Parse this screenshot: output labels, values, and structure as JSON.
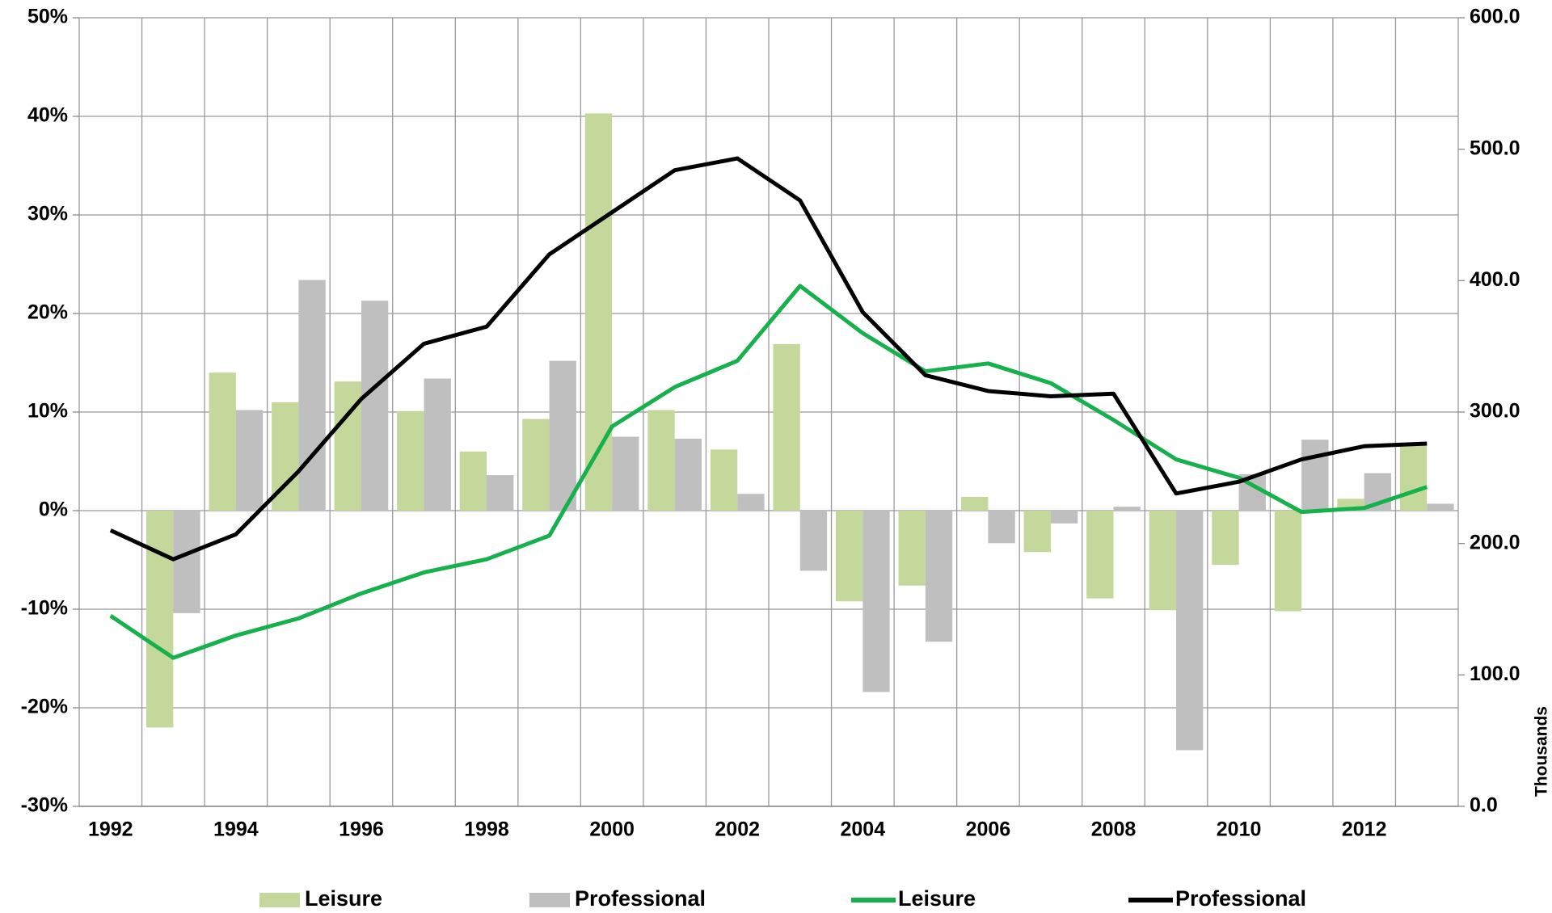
{
  "chart_data": {
    "type": "bar-line",
    "x": [
      1992,
      1993,
      1994,
      1995,
      1996,
      1997,
      1998,
      1999,
      2000,
      2001,
      2002,
      2003,
      2004,
      2005,
      2006,
      2007,
      2008,
      2009,
      2010,
      2011,
      2012,
      2013
    ],
    "xlim": [
      1991.5,
      2013.5
    ],
    "xticks": [
      1992,
      1994,
      1996,
      1998,
      2000,
      2002,
      2004,
      2006,
      2008,
      2010,
      2012
    ],
    "ylim": [
      -30,
      50
    ],
    "yticks": [
      {
        "value": -30,
        "label": "-30%"
      },
      {
        "value": -20,
        "label": "-20%"
      },
      {
        "value": -10,
        "label": "-10%"
      },
      {
        "value": 0,
        "label": "0%"
      },
      {
        "value": 10,
        "label": "10%"
      },
      {
        "value": 20,
        "label": "20%"
      },
      {
        "value": 30,
        "label": "30%"
      },
      {
        "value": 40,
        "label": "40%"
      },
      {
        "value": 50,
        "label": "50%"
      }
    ],
    "y2lim": [
      0,
      600
    ],
    "y2ticks": [
      {
        "value": 0,
        "label": "0.0"
      },
      {
        "value": 100,
        "label": "100.0"
      },
      {
        "value": 200,
        "label": "200.0"
      },
      {
        "value": 300,
        "label": "300.0"
      },
      {
        "value": 400,
        "label": "400.0"
      },
      {
        "value": 500,
        "label": "500.0"
      },
      {
        "value": 600,
        "label": "600.0"
      }
    ],
    "y2label": "Thousands",
    "grid": true,
    "series": [
      {
        "name": "Leisure",
        "type": "bar",
        "color": "#c4d89b",
        "values": [
          null,
          -22,
          14,
          11,
          13.1,
          10.1,
          6.0,
          9.3,
          40.3,
          10.2,
          6.2,
          16.9,
          -9.2,
          -7.6,
          1.4,
          -4.2,
          -8.9,
          -10.1,
          -5.5,
          -10.2,
          1.2,
          6.6
        ]
      },
      {
        "name": "Professional",
        "type": "bar",
        "color": "#bfbfbf",
        "values": [
          null,
          -10.4,
          10.2,
          23.4,
          21.3,
          13.4,
          3.6,
          15.2,
          7.5,
          7.3,
          1.7,
          -6.1,
          -18.4,
          -13.3,
          -3.3,
          -1.3,
          0.4,
          -24.3,
          3.7,
          7.2,
          3.8,
          0.7
        ]
      },
      {
        "name": "Leisure",
        "type": "line",
        "axis": "y2",
        "color": "#16b04c",
        "values": [
          145,
          113,
          130,
          143,
          162,
          178,
          188,
          206,
          289,
          319,
          339,
          396,
          360,
          331,
          337,
          322,
          294,
          264,
          250,
          224,
          227,
          243
        ]
      },
      {
        "name": "Professional",
        "type": "line",
        "axis": "y2",
        "color": "#000000",
        "values": [
          210,
          188,
          207,
          255,
          310,
          352,
          365,
          420,
          452,
          484,
          493,
          461,
          376,
          328,
          316,
          312,
          314,
          238,
          247,
          264,
          274,
          276
        ]
      }
    ]
  }
}
